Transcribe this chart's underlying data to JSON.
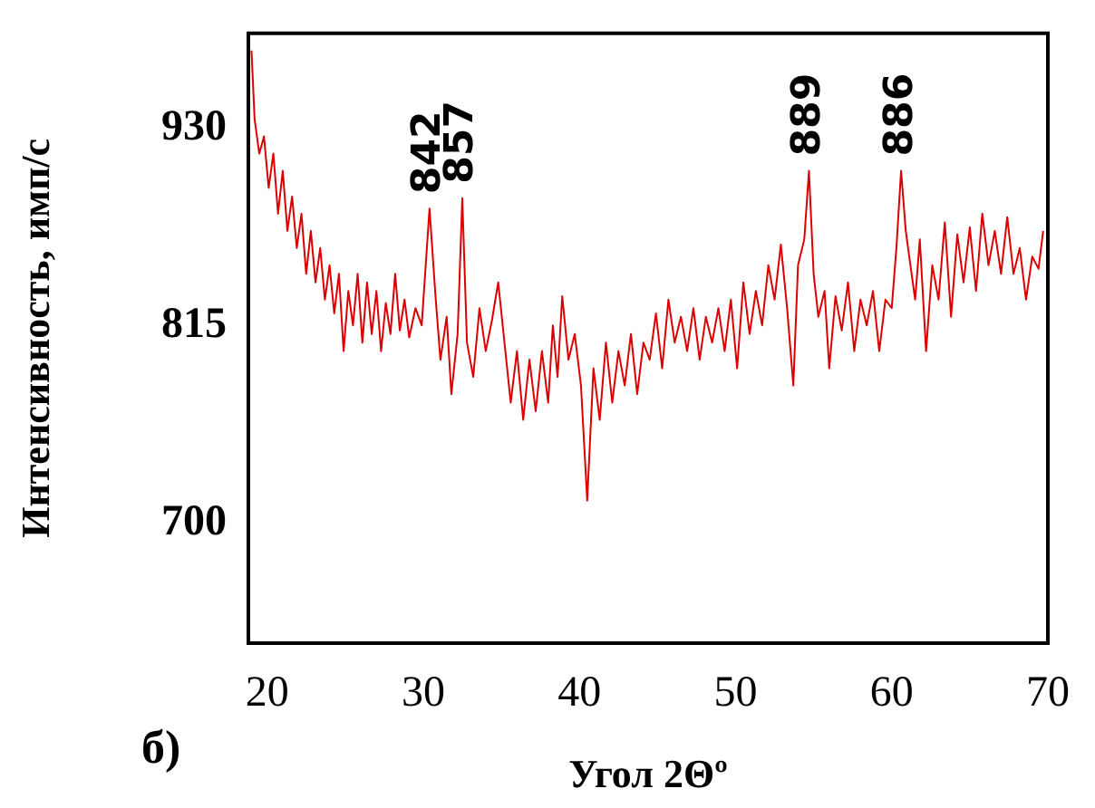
{
  "chart_data": {
    "type": "line",
    "xlabel": "Угол 2Θº",
    "ylabel": "Интенсивность, имп/с",
    "color": "#dd0000",
    "marker": "none",
    "xlim": [
      18.8,
      70
    ],
    "xticks": [
      20,
      30,
      40,
      50,
      60,
      70
    ],
    "ylim": [
      630,
      985
    ],
    "yticks": [
      700,
      815,
      930
    ],
    "annotations": [
      "б)",
      {
        "text": "842",
        "x": 30.4,
        "y": 883
      },
      {
        "text": "857",
        "x": 32.5,
        "y": 889
      },
      {
        "text": "889",
        "x": 54.7,
        "y": 905
      },
      {
        "text": "886",
        "x": 60.6,
        "y": 905
      }
    ],
    "x": [
      19.0,
      19.2,
      19.5,
      19.8,
      20.1,
      20.4,
      20.7,
      21.0,
      21.3,
      21.6,
      21.9,
      22.2,
      22.5,
      22.8,
      23.1,
      23.4,
      23.7,
      24.0,
      24.3,
      24.6,
      24.9,
      25.2,
      25.5,
      25.8,
      26.1,
      26.4,
      26.7,
      27.0,
      27.3,
      27.6,
      27.9,
      28.2,
      28.5,
      28.8,
      29.1,
      29.5,
      29.9,
      30.4,
      30.8,
      31.1,
      31.5,
      31.8,
      32.2,
      32.5,
      32.8,
      33.2,
      33.6,
      34.0,
      34.4,
      34.8,
      35.2,
      35.6,
      36.0,
      36.4,
      36.8,
      37.2,
      37.6,
      38.0,
      38.3,
      38.6,
      38.9,
      39.3,
      39.7,
      40.1,
      40.5,
      40.9,
      41.3,
      41.7,
      42.1,
      42.5,
      42.9,
      43.3,
      43.7,
      44.1,
      44.5,
      44.9,
      45.3,
      45.7,
      46.1,
      46.5,
      46.9,
      47.3,
      47.7,
      48.1,
      48.5,
      48.9,
      49.3,
      49.7,
      50.1,
      50.5,
      50.9,
      51.3,
      51.7,
      52.1,
      52.5,
      52.9,
      53.3,
      53.7,
      54.0,
      54.4,
      54.7,
      55.0,
      55.3,
      55.7,
      56.0,
      56.4,
      56.8,
      57.2,
      57.6,
      58.0,
      58.4,
      58.8,
      59.2,
      59.6,
      60.0,
      60.3,
      60.6,
      60.9,
      61.2,
      61.5,
      61.8,
      62.2,
      62.6,
      63.0,
      63.4,
      63.8,
      64.2,
      64.6,
      65.0,
      65.4,
      65.8,
      66.2,
      66.6,
      67.0,
      67.4,
      67.8,
      68.2,
      68.6,
      69.0,
      69.4,
      69.7
    ],
    "values": [
      975,
      935,
      915,
      925,
      895,
      915,
      880,
      905,
      870,
      890,
      860,
      880,
      845,
      870,
      840,
      860,
      830,
      850,
      822,
      845,
      800,
      835,
      815,
      845,
      805,
      840,
      810,
      835,
      800,
      828,
      810,
      845,
      812,
      830,
      808,
      825,
      815,
      883,
      830,
      795,
      820,
      775,
      810,
      889,
      805,
      785,
      825,
      800,
      818,
      840,
      805,
      770,
      800,
      760,
      795,
      765,
      800,
      770,
      815,
      785,
      832,
      795,
      810,
      780,
      713,
      790,
      760,
      805,
      770,
      800,
      780,
      810,
      775,
      805,
      795,
      822,
      790,
      830,
      805,
      820,
      800,
      825,
      795,
      820,
      805,
      825,
      800,
      830,
      790,
      840,
      810,
      835,
      815,
      850,
      830,
      862,
      825,
      780,
      850,
      865,
      905,
      845,
      820,
      835,
      790,
      832,
      812,
      840,
      800,
      830,
      815,
      835,
      800,
      830,
      825,
      860,
      905,
      870,
      850,
      830,
      865,
      800,
      850,
      830,
      875,
      820,
      868,
      840,
      872,
      835,
      880,
      850,
      870,
      845,
      878,
      845,
      860,
      830,
      855,
      848,
      870
    ]
  }
}
